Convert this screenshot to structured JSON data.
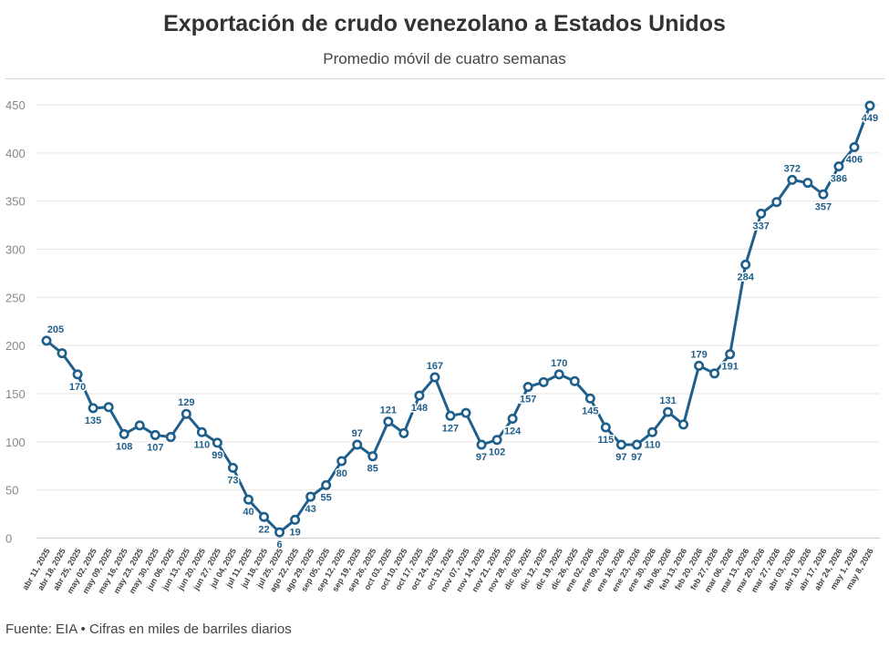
{
  "title": "Exportación de crudo venezolano a Estados Unidos",
  "subtitle": "Promedio móvil de cuatro semanas",
  "footer": "Fuente: EIA • Cifras en miles de barriles diarios",
  "colors": {
    "line": "#1f5f8b",
    "grid": "#e6e6e6",
    "label": "#1f5f8b",
    "tick": "#888888"
  },
  "chart_data": {
    "type": "line",
    "title": "Exportación de crudo venezolano a Estados Unidos",
    "subtitle": "Promedio móvil de cuatro semanas",
    "xlabel": "",
    "ylabel": "",
    "ylim": [
      0,
      450
    ],
    "yticks": [
      0,
      50,
      100,
      150,
      200,
      250,
      300,
      350,
      400,
      450
    ],
    "grid": true,
    "categories": [
      "abr 11, 2025",
      "abr 18, 2025",
      "abr 25, 2025",
      "may 02, 2025",
      "may 09, 2025",
      "may 16, 2025",
      "may 23, 2025",
      "may 30, 2025",
      "jun 06, 2025",
      "jun 13, 2025",
      "jun 20, 2025",
      "jun 27, 2025",
      "jul 04, 2025",
      "jul 11, 2025",
      "jul 18, 2025",
      "jul 25, 2025",
      "ago 22, 2025",
      "ago 29, 2025",
      "sep 05, 2025",
      "sep 12, 2025",
      "sep 19, 2025",
      "sep 26, 2025",
      "oct 03, 2025",
      "oct 10, 2025",
      "oct 17, 2025",
      "oct 24, 2025",
      "oct 31, 2025",
      "nov 07, 2025",
      "nov 14, 2025",
      "nov 21, 2025",
      "nov 28, 2025",
      "dic 05, 2025",
      "dic 12, 2025",
      "dic 19, 2025",
      "dic 26, 2025",
      "ene 02, 2026",
      "ene 09, 2026",
      "ene 16, 2026",
      "ene 23, 2026",
      "ene 30, 2026",
      "feb 06, 2026",
      "feb 13, 2026",
      "feb 20, 2026",
      "feb 27, 2026",
      "mar 06, 2026",
      "mar 13, 2026",
      "mar 20, 2026",
      "mar 27, 2026",
      "abr 03, 2026",
      "abr 10, 2026",
      "abr 17, 2026",
      "abr 24, 2026",
      "may 1, 2026",
      "may 8, 2026"
    ],
    "series": [
      {
        "values": [
          205,
          192,
          170,
          135,
          136,
          108,
          117,
          107,
          105,
          129,
          110,
          99,
          73,
          40,
          22,
          6,
          19,
          43,
          55,
          80,
          97,
          85,
          121,
          109,
          148,
          167,
          127,
          130,
          97,
          102,
          124,
          157,
          162,
          170,
          163,
          145,
          115,
          97,
          97,
          110,
          131,
          118,
          179,
          171,
          191,
          284,
          337,
          349,
          372,
          369,
          357,
          386,
          406,
          449
        ],
        "labels": {
          "0": "205",
          "2": "170",
          "3": "135",
          "5": "108",
          "7": "107",
          "9": "129",
          "10": "110",
          "11": "99",
          "12": "73",
          "13": "40",
          "14": "22",
          "15": "6",
          "16": "19",
          "17": "43",
          "18": "55",
          "19": "80",
          "20": "97",
          "21": "85",
          "22": "121",
          "24": "148",
          "25": "167",
          "26": "127",
          "28": "97",
          "29": "102",
          "30": "124",
          "31": "157",
          "33": "170",
          "35": "145",
          "36": "115",
          "37": "97",
          "38": "97",
          "39": "110",
          "40": "131",
          "42": "179",
          "44": "191",
          "45": "284",
          "46": "337",
          "48": "372",
          "50": "357",
          "51": "386",
          "52": "406",
          "53": "449"
        }
      }
    ]
  }
}
